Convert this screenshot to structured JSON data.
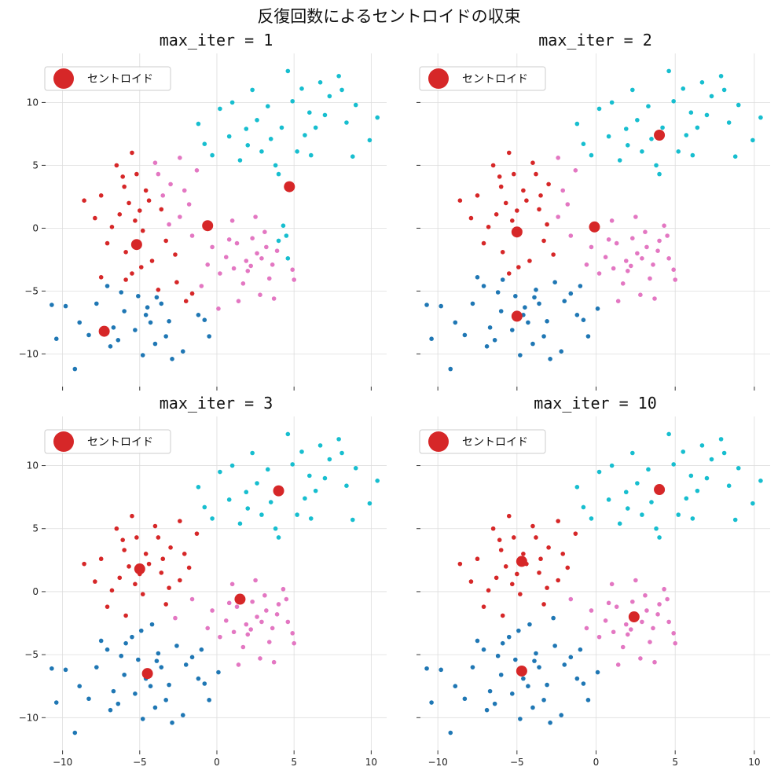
{
  "chart_data": {
    "type": "scatter",
    "title": "反復回数によるセントロイドの収束",
    "xlim": [
      -11.1,
      11.0
    ],
    "ylim": [
      -12.6,
      13.9
    ],
    "xticks": [
      -10,
      -5,
      0,
      5,
      10
    ],
    "yticks": [
      -10,
      -5,
      0,
      5,
      10
    ],
    "grid": true,
    "legend_placement": "upper-left",
    "legend_label": "セントロイド",
    "centroid_color": "#d62728",
    "cluster_colors": [
      "#1f77b4",
      "#d62728",
      "#e377c2",
      "#17becf"
    ],
    "points": [
      [
        -4.5,
        -6.3
      ],
      [
        -6.2,
        -5.1
      ],
      [
        -3.1,
        -7.4
      ],
      [
        -7.8,
        -6.0
      ],
      [
        -2.0,
        -5.8
      ],
      [
        -5.3,
        -8.1
      ],
      [
        -3.8,
        -4.9
      ],
      [
        -8.9,
        -7.5
      ],
      [
        -1.2,
        -6.9
      ],
      [
        -6.7,
        -7.9
      ],
      [
        -4.0,
        -9.2
      ],
      [
        -2.6,
        -4.3
      ],
      [
        -9.8,
        -6.2
      ],
      [
        -5.9,
        -4.1
      ],
      [
        -3.3,
        -8.6
      ],
      [
        -0.8,
        -7.3
      ],
      [
        -7.1,
        -4.6
      ],
      [
        -4.8,
        -10.1
      ],
      [
        -10.7,
        -6.1
      ],
      [
        -2.2,
        -9.8
      ],
      [
        -6.0,
        -6.6
      ],
      [
        -3.6,
        -6.0
      ],
      [
        -5.1,
        -5.4
      ],
      [
        -8.3,
        -8.5
      ],
      [
        -1.6,
        -5.2
      ],
      [
        -4.3,
        -7.5
      ],
      [
        -6.9,
        -9.4
      ],
      [
        -9.2,
        -11.2
      ],
      [
        -0.5,
        -8.6
      ],
      [
        -2.9,
        -10.4
      ],
      [
        -7.5,
        -3.9
      ],
      [
        -5.5,
        -3.6
      ],
      [
        0.1,
        -6.4
      ],
      [
        -3.9,
        -5.5
      ],
      [
        -6.4,
        -8.9
      ],
      [
        -10.4,
        -8.8
      ],
      [
        -1.0,
        -4.6
      ],
      [
        -4.6,
        -6.9
      ],
      [
        -4.4,
        2.2
      ],
      [
        -6.3,
        1.1
      ],
      [
        -3.0,
        3.5
      ],
      [
        -5.2,
        4.3
      ],
      [
        -2.4,
        0.9
      ],
      [
        -7.5,
        2.6
      ],
      [
        -4.8,
        -0.2
      ],
      [
        -3.6,
        1.5
      ],
      [
        -5.9,
        -1.9
      ],
      [
        -2.1,
        3.0
      ],
      [
        -4.0,
        5.2
      ],
      [
        -6.8,
        0.1
      ],
      [
        -3.3,
        -1.0
      ],
      [
        -5.5,
        6.0
      ],
      [
        -1.8,
        1.9
      ],
      [
        -8.6,
        2.2
      ],
      [
        -4.6,
        3.0
      ],
      [
        -6.0,
        3.3
      ],
      [
        -2.7,
        -2.1
      ],
      [
        -3.8,
        4.3
      ],
      [
        -5.0,
        1.4
      ],
      [
        -7.1,
        -1.2
      ],
      [
        -1.3,
        4.6
      ],
      [
        -4.2,
        -2.6
      ],
      [
        -6.5,
        5.0
      ],
      [
        -3.1,
        0.3
      ],
      [
        -5.7,
        2.0
      ],
      [
        -2.4,
        5.6
      ],
      [
        -7.9,
        0.8
      ],
      [
        -4.9,
        -3.1
      ],
      [
        -1.6,
        -0.6
      ],
      [
        -6.1,
        4.1
      ],
      [
        -3.5,
        2.6
      ],
      [
        -5.3,
        0.6
      ],
      [
        2.6,
        -2.0
      ],
      [
        1.3,
        -1.2
      ],
      [
        3.6,
        -2.9
      ],
      [
        2.0,
        -3.4
      ],
      [
        4.0,
        -1.0
      ],
      [
        0.6,
        -2.3
      ],
      [
        3.1,
        -0.3
      ],
      [
        1.7,
        -4.4
      ],
      [
        4.6,
        -2.4
      ],
      [
        2.3,
        -0.8
      ],
      [
        0.2,
        -3.6
      ],
      [
        3.4,
        -4.0
      ],
      [
        1.0,
        0.6
      ],
      [
        4.9,
        -3.3
      ],
      [
        2.8,
        -5.3
      ],
      [
        -0.3,
        -1.5
      ],
      [
        1.9,
        -2.6
      ],
      [
        3.9,
        -1.8
      ],
      [
        2.5,
        0.9
      ],
      [
        5.0,
        -4.1
      ],
      [
        1.4,
        -5.8
      ],
      [
        3.2,
        -1.5
      ],
      [
        0.8,
        -0.9
      ],
      [
        4.3,
        0.2
      ],
      [
        2.2,
        -3.0
      ],
      [
        -0.6,
        -2.9
      ],
      [
        3.7,
        -5.6
      ],
      [
        1.1,
        -3.2
      ],
      [
        2.9,
        -2.4
      ],
      [
        4.5,
        -0.6
      ],
      [
        4.2,
        8.0
      ],
      [
        6.0,
        9.2
      ],
      [
        2.0,
        6.6
      ],
      [
        7.3,
        10.5
      ],
      [
        0.8,
        7.3
      ],
      [
        5.2,
        6.1
      ],
      [
        3.3,
        9.7
      ],
      [
        8.4,
        8.4
      ],
      [
        1.5,
        5.4
      ],
      [
        6.7,
        11.6
      ],
      [
        -0.8,
        6.7
      ],
      [
        4.6,
        12.5
      ],
      [
        2.6,
        8.6
      ],
      [
        9.0,
        9.8
      ],
      [
        0.2,
        9.5
      ],
      [
        5.7,
        7.4
      ],
      [
        3.8,
        5.0
      ],
      [
        7.9,
        12.1
      ],
      [
        -1.2,
        8.3
      ],
      [
        6.4,
        8.0
      ],
      [
        1.9,
        7.9
      ],
      [
        10.4,
        8.8
      ],
      [
        4.9,
        10.1
      ],
      [
        2.9,
        6.1
      ],
      [
        8.8,
        5.7
      ],
      [
        -0.3,
        5.8
      ],
      [
        5.5,
        11.1
      ],
      [
        3.5,
        7.1
      ],
      [
        7.0,
        9.0
      ],
      [
        1.0,
        10.0
      ],
      [
        6.1,
        5.8
      ],
      [
        9.9,
        7.0
      ],
      [
        4.0,
        4.3
      ],
      [
        2.3,
        11.0
      ],
      [
        8.1,
        11.0
      ]
    ],
    "panels": [
      {
        "title": "max_iter = 1",
        "centroids": [
          [
            -7.3,
            -8.2
          ],
          [
            -5.2,
            -1.3
          ],
          [
            -0.6,
            0.2
          ],
          [
            4.7,
            3.3
          ]
        ]
      },
      {
        "title": "max_iter = 2",
        "centroids": [
          [
            -5.0,
            -7.0
          ],
          [
            -5.0,
            -0.3
          ],
          [
            -0.1,
            0.1
          ],
          [
            4.0,
            7.4
          ]
        ]
      },
      {
        "title": "max_iter = 3",
        "centroids": [
          [
            -4.5,
            -6.5
          ],
          [
            -5.0,
            1.8
          ],
          [
            1.5,
            -0.6
          ],
          [
            4.0,
            8.0
          ]
        ]
      },
      {
        "title": "max_iter = 10",
        "centroids": [
          [
            -4.7,
            -6.3
          ],
          [
            -4.7,
            2.4
          ],
          [
            2.4,
            -2.0
          ],
          [
            4.0,
            8.1
          ]
        ]
      }
    ]
  }
}
